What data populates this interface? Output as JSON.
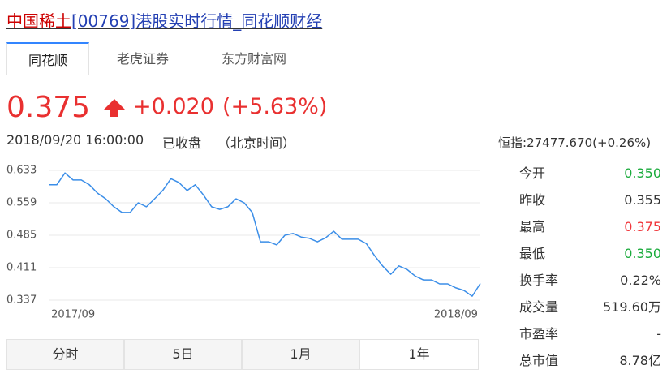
{
  "header": {
    "title_stock": "中国稀土",
    "title_rest": "[00769]港股实时行情_同花顺财经"
  },
  "source_tabs": [
    "同花顺",
    "老虎证券",
    "东方财富网"
  ],
  "quote": {
    "price": "0.375",
    "change": "+0.020",
    "change_pct": "(+5.63%)",
    "time": "2018/09/20 16:00:00",
    "status": "已收盘",
    "timezone": "（北京时间）",
    "index_name": "恒指",
    "index_value": ":27477.670(+0.26%)"
  },
  "stats": [
    {
      "label": "今开",
      "value": "0.350"
    },
    {
      "label": "昨收",
      "value": "0.355"
    },
    {
      "label": "最高",
      "value": "0.375"
    },
    {
      "label": "最低",
      "value": "0.350"
    },
    {
      "label": "换手率",
      "value": "0.22%"
    },
    {
      "label": "成交量",
      "value": "519.60万"
    },
    {
      "label": "市盈率",
      "value": "-"
    },
    {
      "label": "总市值",
      "value": "8.78亿"
    }
  ],
  "period_tabs": [
    "分时",
    "5日",
    "1月",
    "1年"
  ],
  "chart_data": {
    "type": "line",
    "color": "#3b8ee8",
    "categories": [
      null,
      null,
      null,
      "2017/09",
      null,
      null,
      null,
      null,
      null,
      null,
      null,
      null,
      null,
      null,
      null,
      null,
      null,
      null,
      null,
      null,
      null,
      null,
      null,
      null,
      null,
      null,
      null,
      null,
      null,
      null,
      null,
      null,
      null,
      null,
      null,
      null,
      null,
      null,
      null,
      null,
      null,
      null,
      null,
      null,
      null,
      null,
      null,
      null,
      null,
      null,
      "2018/09",
      null,
      null,
      null
    ],
    "values": [
      0.6,
      0.6,
      0.627,
      0.611,
      0.611,
      0.6,
      0.581,
      0.568,
      0.55,
      0.537,
      0.537,
      0.559,
      0.55,
      0.568,
      0.587,
      0.614,
      0.605,
      0.587,
      0.6,
      0.577,
      0.55,
      0.544,
      0.55,
      0.568,
      0.559,
      0.537,
      0.47,
      0.47,
      0.463,
      0.485,
      0.489,
      0.481,
      0.478,
      0.47,
      0.479,
      0.494,
      0.476,
      0.476,
      0.476,
      0.466,
      0.439,
      0.415,
      0.396,
      0.415,
      0.407,
      0.392,
      0.383,
      0.383,
      0.374,
      0.374,
      0.365,
      0.359,
      0.346,
      0.375
    ],
    "ylim": [
      0.337,
      0.633
    ],
    "yticks": [
      0.633,
      0.559,
      0.485,
      0.411,
      0.337
    ],
    "grid": true
  }
}
